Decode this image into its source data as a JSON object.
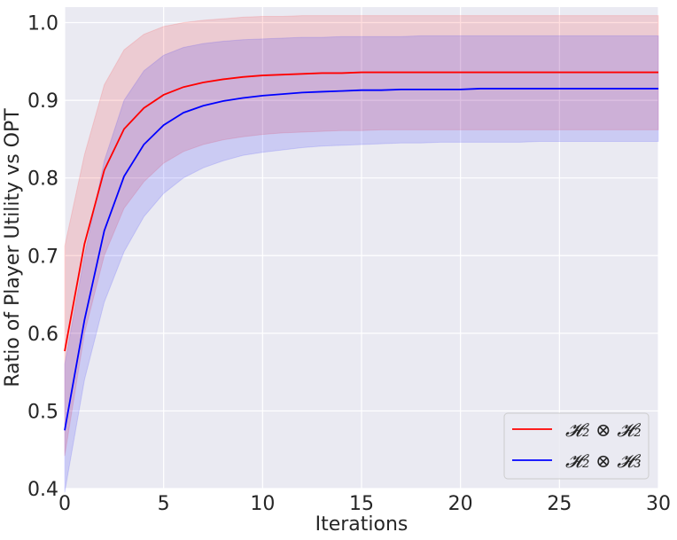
{
  "chart_data": {
    "type": "line",
    "xlabel": "Iterations",
    "ylabel": "Ratio of Player Utility vs OPT",
    "xlim": [
      0,
      30
    ],
    "ylim": [
      0.4,
      1.02
    ],
    "x_ticks": [
      "0",
      "5",
      "10",
      "15",
      "20",
      "25",
      "30"
    ],
    "y_ticks": [
      "0.4",
      "0.5",
      "0.6",
      "0.7",
      "0.8",
      "0.9",
      "1.0"
    ],
    "x_tick_values": [
      0,
      5,
      10,
      15,
      20,
      25,
      30
    ],
    "y_tick_values": [
      0.4,
      0.5,
      0.6,
      0.7,
      0.8,
      0.9,
      1.0
    ],
    "grid": true,
    "legend_position": "bottom-right",
    "x": [
      0,
      1,
      2,
      3,
      4,
      5,
      6,
      7,
      8,
      9,
      10,
      11,
      12,
      13,
      14,
      15,
      16,
      17,
      18,
      19,
      20,
      21,
      22,
      23,
      24,
      25,
      26,
      27,
      28,
      29,
      30
    ],
    "series": [
      {
        "name": "𝓗₂ ⊗ 𝓗₂",
        "color": "#ff0000",
        "band_color": "#f2a0a8",
        "mean": [
          0.577,
          0.715,
          0.81,
          0.863,
          0.89,
          0.907,
          0.917,
          0.923,
          0.927,
          0.93,
          0.932,
          0.933,
          0.934,
          0.935,
          0.935,
          0.936,
          0.936,
          0.936,
          0.936,
          0.936,
          0.936,
          0.936,
          0.936,
          0.936,
          0.936,
          0.936,
          0.936,
          0.936,
          0.936,
          0.936,
          0.936
        ],
        "upper": [
          0.712,
          0.83,
          0.92,
          0.965,
          0.985,
          0.995,
          1.0,
          1.003,
          1.005,
          1.007,
          1.008,
          1.008,
          1.009,
          1.009,
          1.009,
          1.009,
          1.009,
          1.009,
          1.009,
          1.009,
          1.009,
          1.009,
          1.009,
          1.009,
          1.009,
          1.009,
          1.009,
          1.009,
          1.009,
          1.009,
          1.009
        ],
        "lower": [
          0.442,
          0.6,
          0.7,
          0.761,
          0.795,
          0.819,
          0.834,
          0.843,
          0.849,
          0.853,
          0.856,
          0.858,
          0.859,
          0.86,
          0.861,
          0.861,
          0.862,
          0.862,
          0.862,
          0.862,
          0.862,
          0.862,
          0.862,
          0.862,
          0.862,
          0.862,
          0.862,
          0.862,
          0.862,
          0.862,
          0.862
        ]
      },
      {
        "name": "𝓗₂ ⊗ 𝓗₃",
        "color": "#0000ff",
        "band_color": "#a6a8f0",
        "mean": [
          0.475,
          0.617,
          0.732,
          0.802,
          0.843,
          0.868,
          0.884,
          0.893,
          0.899,
          0.903,
          0.906,
          0.908,
          0.91,
          0.911,
          0.912,
          0.913,
          0.913,
          0.914,
          0.914,
          0.914,
          0.914,
          0.915,
          0.915,
          0.915,
          0.915,
          0.915,
          0.915,
          0.915,
          0.915,
          0.915,
          0.915
        ],
        "upper": [
          0.56,
          0.7,
          0.822,
          0.9,
          0.938,
          0.958,
          0.968,
          0.973,
          0.976,
          0.978,
          0.979,
          0.98,
          0.981,
          0.981,
          0.982,
          0.982,
          0.982,
          0.982,
          0.983,
          0.983,
          0.983,
          0.983,
          0.983,
          0.983,
          0.983,
          0.983,
          0.983,
          0.983,
          0.983,
          0.983,
          0.983
        ],
        "lower": [
          0.395,
          0.54,
          0.64,
          0.705,
          0.75,
          0.78,
          0.8,
          0.813,
          0.822,
          0.829,
          0.833,
          0.836,
          0.839,
          0.841,
          0.842,
          0.843,
          0.844,
          0.845,
          0.845,
          0.846,
          0.846,
          0.846,
          0.846,
          0.846,
          0.847,
          0.847,
          0.847,
          0.847,
          0.847,
          0.847,
          0.847
        ]
      }
    ]
  }
}
